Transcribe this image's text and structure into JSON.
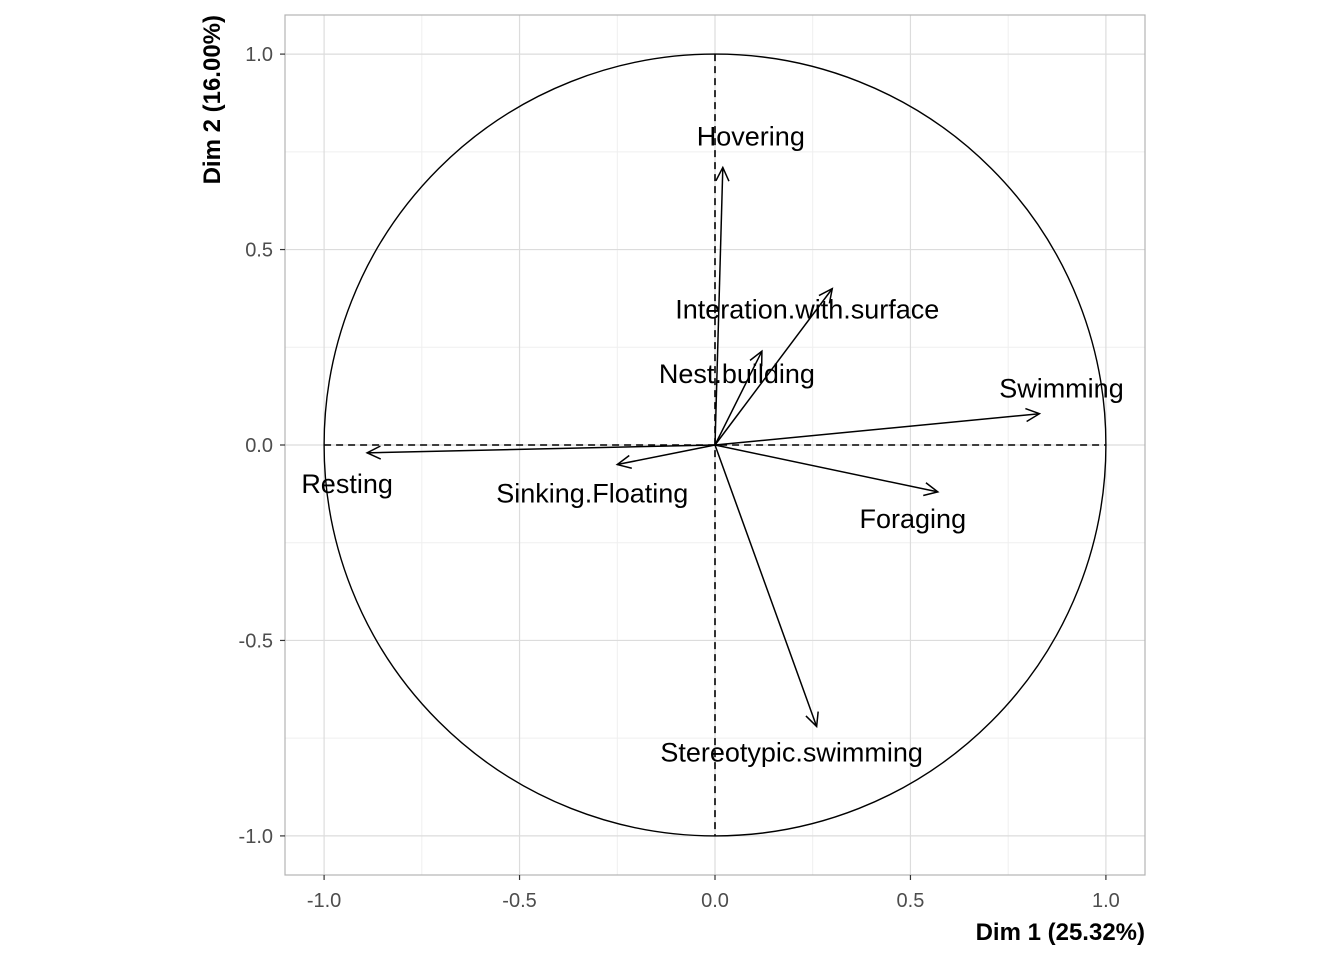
{
  "chart_data": {
    "type": "scatter",
    "subtype": "pca-variables-correlation-circle",
    "title": "",
    "xlabel": "Dim 1 (25.32%)",
    "ylabel": "Dim 2 (16.00%)",
    "xlim": [
      -1.1,
      1.1
    ],
    "ylim": [
      -1.1,
      1.1
    ],
    "xticks": [
      -1.0,
      -0.5,
      0.0,
      0.5,
      1.0
    ],
    "yticks": [
      -1.0,
      -0.5,
      0.0,
      0.5,
      1.0
    ],
    "xtick_labels": [
      "-1.0",
      "-0.5",
      "0.0",
      "0.5",
      "1.0"
    ],
    "ytick_labels": [
      "-1.0",
      "-0.5",
      "0.0",
      "0.5",
      "1.0"
    ],
    "grid": true,
    "unit_circle": true,
    "reference_lines": [
      "x=0",
      "y=0"
    ],
    "variables": [
      {
        "name": "Hovering",
        "x": 0.02,
        "y": 0.71
      },
      {
        "name": "Interation.with.surface",
        "x": 0.3,
        "y": 0.4
      },
      {
        "name": "Nest.building",
        "x": 0.12,
        "y": 0.24
      },
      {
        "name": "Swimming",
        "x": 0.83,
        "y": 0.08
      },
      {
        "name": "Resting",
        "x": -0.89,
        "y": -0.02
      },
      {
        "name": "Sinking.Floating",
        "x": -0.25,
        "y": -0.05
      },
      {
        "name": "Foraging",
        "x": 0.57,
        "y": -0.12
      },
      {
        "name": "Stereotypic.swimming",
        "x": 0.26,
        "y": -0.72
      }
    ],
    "colors": {
      "panel_border": "#b3b3b3",
      "grid_major": "#dcdcdc",
      "grid_minor": "#efefef",
      "arrow": "#000000",
      "tick_text": "#4d4d4d"
    }
  }
}
